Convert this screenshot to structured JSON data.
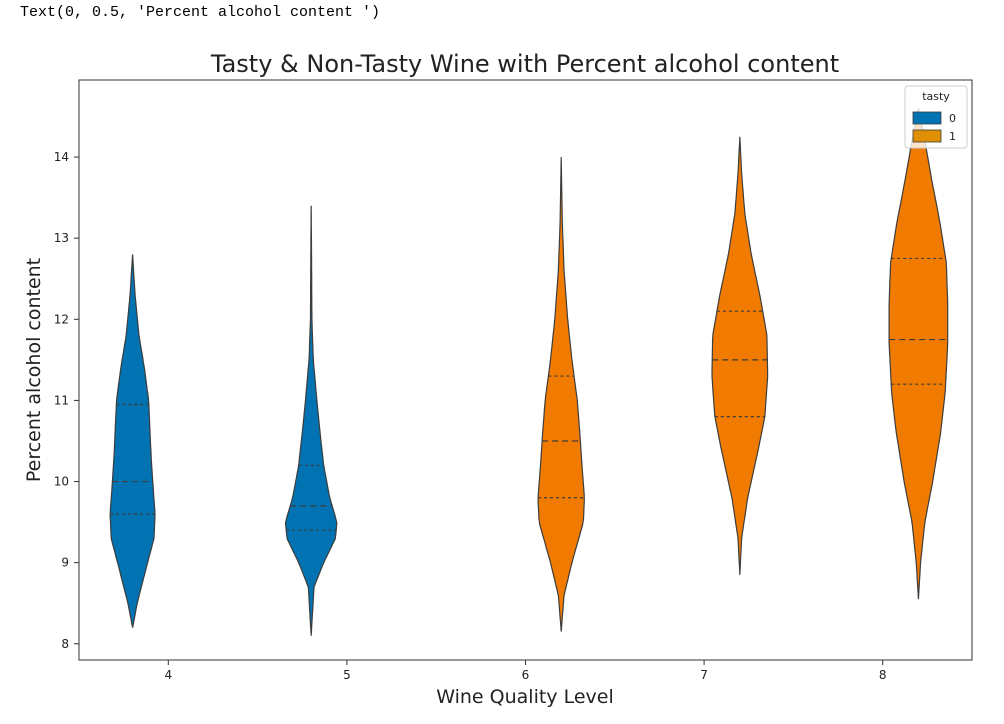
{
  "output_text": "Text(0, 0.5, 'Percent alcohol content ')",
  "chart_data": {
    "type": "violin",
    "title": "Tasty & Non-Tasty Wine with Percent alcohol content",
    "xlabel": "Wine Quality Level",
    "ylabel": "Percent alcohol content",
    "categories": [
      "4",
      "5",
      "6",
      "7",
      "8"
    ],
    "ylim": [
      7.8,
      14.95
    ],
    "yticks": [
      8,
      9,
      10,
      11,
      12,
      13,
      14
    ],
    "grid": false,
    "legend": {
      "title": "tasty",
      "placement": "top-right",
      "entries": [
        {
          "label": "0",
          "color": "#0173b2"
        },
        {
          "label": "1",
          "color": "#de8f05"
        }
      ]
    },
    "colors": {
      "0": "#0173b2",
      "1": "#f07b00"
    },
    "violins": [
      {
        "category": "4",
        "tasty": "0",
        "min": 8.2,
        "max": 12.8,
        "q1": 9.6,
        "median": 10.0,
        "q3": 10.95,
        "density": [
          [
            8.2,
            0.0
          ],
          [
            8.5,
            0.13
          ],
          [
            9.0,
            0.42
          ],
          [
            9.3,
            0.6
          ],
          [
            9.6,
            0.63
          ],
          [
            9.9,
            0.58
          ],
          [
            10.3,
            0.52
          ],
          [
            10.7,
            0.48
          ],
          [
            11.0,
            0.45
          ],
          [
            11.4,
            0.33
          ],
          [
            11.8,
            0.18
          ],
          [
            12.3,
            0.07
          ],
          [
            12.8,
            0.0
          ]
        ]
      },
      {
        "category": "5",
        "tasty": "0",
        "min": 8.1,
        "max": 13.4,
        "q1": 9.4,
        "median": 9.7,
        "q3": 10.2,
        "density": [
          [
            8.1,
            0.0
          ],
          [
            8.7,
            0.08
          ],
          [
            9.0,
            0.35
          ],
          [
            9.3,
            0.68
          ],
          [
            9.5,
            0.72
          ],
          [
            9.8,
            0.52
          ],
          [
            10.2,
            0.35
          ],
          [
            10.6,
            0.25
          ],
          [
            11.0,
            0.16
          ],
          [
            11.5,
            0.06
          ],
          [
            12.0,
            0.02
          ],
          [
            12.8,
            0.01
          ],
          [
            13.4,
            0.0
          ]
        ]
      },
      {
        "category": "6",
        "tasty": "1",
        "min": 8.15,
        "max": 14.0,
        "q1": 9.8,
        "median": 10.5,
        "q3": 11.3,
        "density": [
          [
            8.15,
            0.0
          ],
          [
            8.6,
            0.08
          ],
          [
            9.0,
            0.3
          ],
          [
            9.5,
            0.62
          ],
          [
            9.8,
            0.65
          ],
          [
            10.2,
            0.58
          ],
          [
            10.6,
            0.52
          ],
          [
            11.0,
            0.45
          ],
          [
            11.5,
            0.3
          ],
          [
            12.0,
            0.18
          ],
          [
            12.6,
            0.08
          ],
          [
            13.2,
            0.03
          ],
          [
            14.0,
            0.0
          ]
        ]
      },
      {
        "category": "7",
        "tasty": "1",
        "min": 8.85,
        "max": 14.25,
        "q1": 10.8,
        "median": 11.5,
        "q3": 12.1,
        "density": [
          [
            8.85,
            0.0
          ],
          [
            9.3,
            0.05
          ],
          [
            9.8,
            0.22
          ],
          [
            10.4,
            0.52
          ],
          [
            10.8,
            0.7
          ],
          [
            11.3,
            0.78
          ],
          [
            11.8,
            0.76
          ],
          [
            12.3,
            0.56
          ],
          [
            12.8,
            0.32
          ],
          [
            13.3,
            0.14
          ],
          [
            13.8,
            0.05
          ],
          [
            14.25,
            0.0
          ]
        ]
      },
      {
        "category": "8",
        "tasty": "1",
        "min": 8.55,
        "max": 14.6,
        "q1": 11.2,
        "median": 11.75,
        "q3": 12.75,
        "density": [
          [
            8.55,
            0.0
          ],
          [
            9.0,
            0.06
          ],
          [
            9.5,
            0.18
          ],
          [
            10.0,
            0.4
          ],
          [
            10.6,
            0.62
          ],
          [
            11.1,
            0.75
          ],
          [
            11.7,
            0.82
          ],
          [
            12.2,
            0.82
          ],
          [
            12.7,
            0.78
          ],
          [
            13.2,
            0.6
          ],
          [
            13.7,
            0.38
          ],
          [
            14.1,
            0.22
          ],
          [
            14.6,
            0.0
          ]
        ]
      }
    ]
  }
}
